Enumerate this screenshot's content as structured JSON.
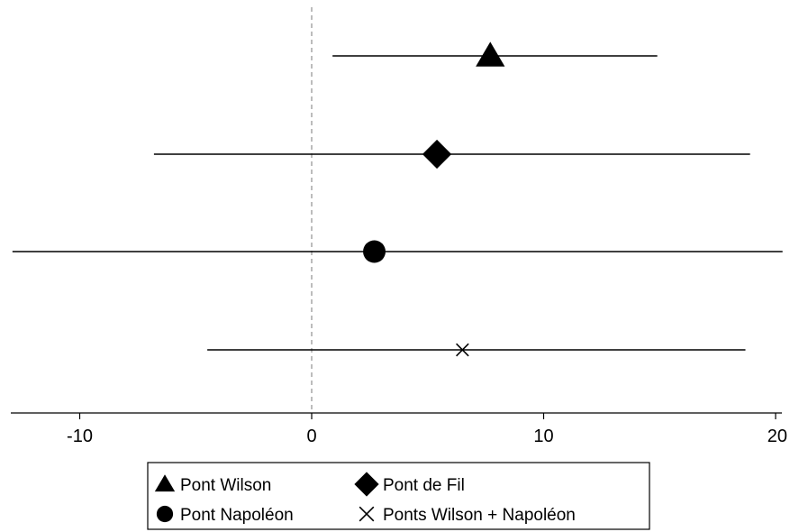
{
  "chart_data": {
    "type": "scatter",
    "subtype": "coefficient-plot",
    "title": "",
    "xlabel": "",
    "ylabel": "",
    "xlim": [
      -13,
      20.2
    ],
    "xticks": [
      -10,
      0,
      10,
      20
    ],
    "xtick_labels": [
      "-10",
      "0",
      "10",
      "20"
    ],
    "reference_line": {
      "x": 0,
      "style": "dashed",
      "color": "#999999"
    },
    "grid": false,
    "legend_position": "bottom",
    "series": [
      {
        "name": "Pont Wilson",
        "marker": "triangle",
        "estimate": 7.7,
        "ci": [
          0.9,
          14.9
        ]
      },
      {
        "name": "Pont de Fil",
        "marker": "diamond",
        "estimate": 5.4,
        "ci": [
          -6.8,
          18.9
        ]
      },
      {
        "name": "Pont Napoléon",
        "marker": "circle",
        "estimate": 2.7,
        "ci": [
          -12.9,
          20.3
        ]
      },
      {
        "name": "Ponts Wilson + Napoléon",
        "marker": "x",
        "estimate": 6.5,
        "ci": [
          -4.5,
          18.7
        ]
      }
    ]
  }
}
